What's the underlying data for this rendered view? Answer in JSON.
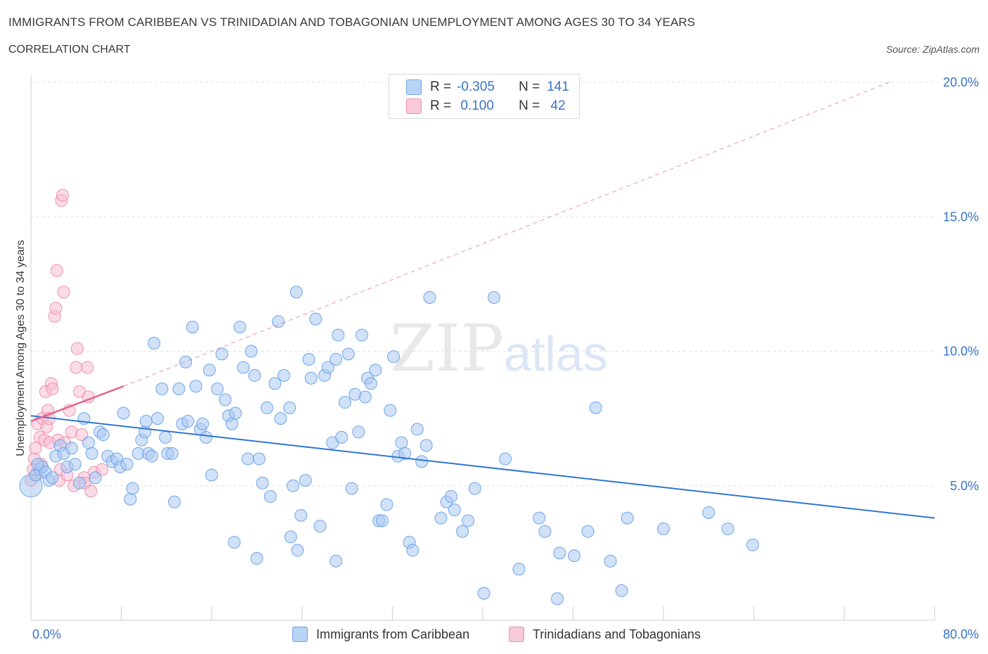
{
  "title": "IMMIGRANTS FROM CARIBBEAN VS TRINIDADIAN AND TOBAGONIAN UNEMPLOYMENT AMONG AGES 30 TO 34 YEARS",
  "subtitle": "CORRELATION CHART",
  "source": "Source: ZipAtlas.com",
  "watermark": "ZIPatlas",
  "colors": {
    "blue": "#6fa5ea",
    "blue_fill": "#a9c8f3",
    "blue_line": "#2f76d2",
    "pink": "#ef8fb0",
    "pink_fill": "#f7bfd2",
    "pink_line": "#e0668f",
    "tick_label": "#3a73c8",
    "grid": "#e2e2e2"
  },
  "legend": {
    "rows": [
      {
        "r_label": "R =",
        "r_value": "-0.305",
        "n_label": "N =",
        "n_value": "141"
      },
      {
        "r_label": "R =",
        "r_value": " 0.100",
        "n_label": "N =",
        "n_value": " 42"
      }
    ]
  },
  "bottom_legend": [
    "Immigrants from Caribbean",
    "Trinidadians and Tobagonians"
  ],
  "chart_data": {
    "type": "scatter",
    "ylabel": "Unemployment Among Ages 30 to 34 years",
    "xlim": [
      0,
      80
    ],
    "ylim": [
      0,
      20
    ],
    "x_tick_labels": [
      "0.0%",
      "80.0%"
    ],
    "y_ticks": [
      5,
      10,
      15,
      20
    ],
    "y_tick_labels": [
      "5.0%",
      "10.0%",
      "15.0%",
      "20.0%"
    ],
    "grid": "horizontal dashed",
    "series": [
      {
        "name": "Immigrants from Caribbean",
        "color": "blue",
        "R": -0.305,
        "N": 141,
        "trend": {
          "x0": 0,
          "y0": 7.6,
          "x1": 80,
          "y1": 3.8
        },
        "points": [
          [
            0.0,
            5.0
          ],
          [
            0.4,
            5.4
          ],
          [
            0.8,
            5.6
          ],
          [
            1.0,
            5.7
          ],
          [
            1.3,
            5.5
          ],
          [
            1.6,
            5.2
          ],
          [
            1.9,
            5.3
          ],
          [
            2.2,
            6.1
          ],
          [
            2.6,
            6.5
          ],
          [
            2.9,
            6.2
          ],
          [
            3.2,
            5.7
          ],
          [
            3.6,
            6.4
          ],
          [
            3.9,
            5.8
          ],
          [
            4.3,
            5.1
          ],
          [
            4.7,
            7.5
          ],
          [
            5.1,
            6.6
          ],
          [
            5.4,
            6.2
          ],
          [
            5.7,
            5.3
          ],
          [
            6.1,
            7.0
          ],
          [
            6.4,
            6.9
          ],
          [
            6.8,
            6.1
          ],
          [
            7.2,
            5.9
          ],
          [
            7.6,
            6.0
          ],
          [
            7.9,
            5.7
          ],
          [
            8.2,
            7.7
          ],
          [
            8.5,
            5.8
          ],
          [
            8.8,
            4.5
          ],
          [
            9.0,
            4.9
          ],
          [
            9.5,
            6.2
          ],
          [
            9.8,
            6.7
          ],
          [
            10.1,
            7.0
          ],
          [
            10.2,
            7.4
          ],
          [
            10.4,
            6.2
          ],
          [
            10.7,
            6.1
          ],
          [
            10.9,
            10.3
          ],
          [
            11.2,
            7.5
          ],
          [
            11.6,
            8.6
          ],
          [
            11.9,
            6.8
          ],
          [
            12.1,
            6.2
          ],
          [
            12.5,
            6.2
          ],
          [
            12.7,
            4.4
          ],
          [
            13.1,
            8.6
          ],
          [
            13.4,
            7.3
          ],
          [
            13.7,
            9.6
          ],
          [
            13.9,
            7.4
          ],
          [
            14.3,
            10.9
          ],
          [
            14.6,
            8.7
          ],
          [
            15.0,
            7.1
          ],
          [
            15.2,
            7.3
          ],
          [
            15.5,
            6.8
          ],
          [
            15.8,
            9.3
          ],
          [
            16.0,
            5.4
          ],
          [
            16.5,
            8.6
          ],
          [
            16.9,
            9.9
          ],
          [
            17.2,
            8.2
          ],
          [
            17.5,
            7.6
          ],
          [
            17.8,
            7.3
          ],
          [
            18.1,
            7.7
          ],
          [
            18.5,
            10.9
          ],
          [
            18.8,
            9.4
          ],
          [
            19.2,
            6.0
          ],
          [
            19.5,
            10.0
          ],
          [
            19.8,
            9.1
          ],
          [
            20.2,
            6.0
          ],
          [
            20.5,
            5.1
          ],
          [
            20.9,
            7.9
          ],
          [
            21.2,
            4.6
          ],
          [
            21.6,
            8.8
          ],
          [
            21.9,
            11.1
          ],
          [
            22.1,
            7.5
          ],
          [
            22.4,
            9.1
          ],
          [
            22.9,
            7.9
          ],
          [
            23.2,
            5.0
          ],
          [
            23.5,
            12.2
          ],
          [
            23.9,
            3.9
          ],
          [
            24.3,
            5.2
          ],
          [
            24.6,
            9.7
          ],
          [
            24.8,
            9.0
          ],
          [
            25.2,
            11.2
          ],
          [
            25.6,
            3.5
          ],
          [
            26.0,
            9.1
          ],
          [
            26.3,
            9.4
          ],
          [
            26.7,
            6.6
          ],
          [
            27.0,
            9.7
          ],
          [
            27.2,
            10.6
          ],
          [
            27.5,
            6.8
          ],
          [
            27.8,
            8.1
          ],
          [
            28.1,
            9.9
          ],
          [
            28.4,
            4.9
          ],
          [
            28.7,
            8.4
          ],
          [
            29.0,
            7.0
          ],
          [
            29.3,
            10.6
          ],
          [
            29.6,
            8.3
          ],
          [
            29.8,
            9.0
          ],
          [
            30.1,
            8.8
          ],
          [
            30.5,
            9.3
          ],
          [
            30.8,
            3.7
          ],
          [
            31.1,
            3.7
          ],
          [
            31.5,
            4.3
          ],
          [
            31.8,
            7.8
          ],
          [
            32.1,
            9.8
          ],
          [
            32.5,
            6.1
          ],
          [
            32.8,
            6.6
          ],
          [
            33.1,
            6.2
          ],
          [
            33.5,
            2.9
          ],
          [
            33.8,
            2.6
          ],
          [
            34.2,
            7.1
          ],
          [
            34.6,
            5.9
          ],
          [
            35.0,
            6.5
          ],
          [
            35.3,
            12.0
          ],
          [
            36.3,
            3.8
          ],
          [
            36.8,
            4.4
          ],
          [
            37.2,
            4.6
          ],
          [
            37.5,
            4.1
          ],
          [
            38.2,
            3.3
          ],
          [
            38.7,
            3.7
          ],
          [
            39.3,
            4.9
          ],
          [
            40.1,
            1.0
          ],
          [
            41.0,
            12.0
          ],
          [
            42.0,
            6.0
          ],
          [
            43.2,
            1.9
          ],
          [
            45.0,
            3.8
          ],
          [
            45.5,
            3.3
          ],
          [
            46.6,
            0.8
          ],
          [
            46.8,
            2.5
          ],
          [
            48.1,
            2.4
          ],
          [
            49.3,
            3.3
          ],
          [
            50.0,
            7.9
          ],
          [
            51.3,
            2.2
          ],
          [
            52.3,
            1.1
          ],
          [
            52.8,
            3.8
          ],
          [
            56.0,
            3.4
          ],
          [
            60.0,
            4.0
          ],
          [
            61.7,
            3.4
          ],
          [
            63.9,
            2.8
          ],
          [
            18.0,
            2.9
          ],
          [
            20.0,
            2.3
          ],
          [
            23.0,
            3.1
          ],
          [
            23.6,
            2.6
          ],
          [
            27.0,
            2.2
          ],
          [
            0.6,
            5.8
          ]
        ]
      },
      {
        "name": "Trinidadians and Tobagonians",
        "color": "pink",
        "R": 0.1,
        "N": 42,
        "trend_solid": {
          "x0": 0,
          "y0": 7.4,
          "x1": 8.2,
          "y1": 8.7
        },
        "trend_dashed": {
          "x0": 8.2,
          "y0": 8.7,
          "x1": 76,
          "y1": 20.0
        },
        "points": [
          [
            0.0,
            5.2
          ],
          [
            0.2,
            5.6
          ],
          [
            0.3,
            6.0
          ],
          [
            0.4,
            6.4
          ],
          [
            0.5,
            5.4
          ],
          [
            0.6,
            7.3
          ],
          [
            0.8,
            6.8
          ],
          [
            0.9,
            5.8
          ],
          [
            1.0,
            7.5
          ],
          [
            1.2,
            6.7
          ],
          [
            1.3,
            8.5
          ],
          [
            1.4,
            7.2
          ],
          [
            1.5,
            7.8
          ],
          [
            1.6,
            7.5
          ],
          [
            1.7,
            6.6
          ],
          [
            1.8,
            8.8
          ],
          [
            1.9,
            8.6
          ],
          [
            2.1,
            11.3
          ],
          [
            2.2,
            11.6
          ],
          [
            2.3,
            13.0
          ],
          [
            2.4,
            6.7
          ],
          [
            2.5,
            5.2
          ],
          [
            2.6,
            5.6
          ],
          [
            2.7,
            15.6
          ],
          [
            2.8,
            15.8
          ],
          [
            2.9,
            12.2
          ],
          [
            3.0,
            6.6
          ],
          [
            3.2,
            5.4
          ],
          [
            3.4,
            7.8
          ],
          [
            3.6,
            7.0
          ],
          [
            3.8,
            5.0
          ],
          [
            4.0,
            9.4
          ],
          [
            4.1,
            10.1
          ],
          [
            4.3,
            8.5
          ],
          [
            4.5,
            6.9
          ],
          [
            4.7,
            5.3
          ],
          [
            4.8,
            5.1
          ],
          [
            5.0,
            9.4
          ],
          [
            5.1,
            8.3
          ],
          [
            5.3,
            4.8
          ],
          [
            5.6,
            5.5
          ],
          [
            6.3,
            5.6
          ]
        ]
      }
    ]
  }
}
